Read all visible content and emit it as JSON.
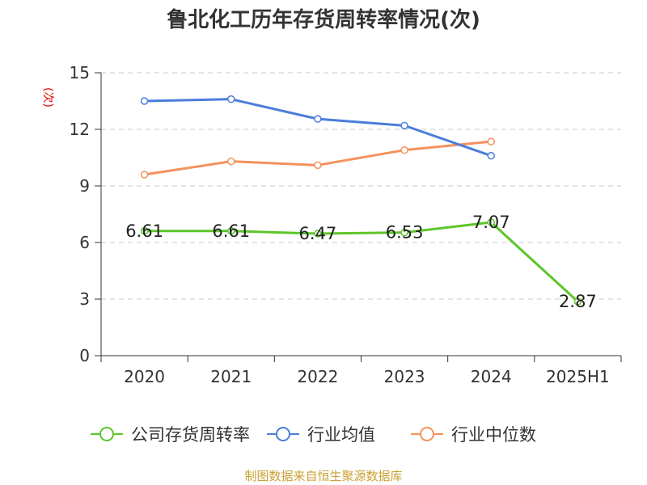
{
  "page": {
    "title": "鲁北化工历年存货周转率情况(次)",
    "footer": "制图数据来自恒生聚源数据库"
  },
  "chart_data": {
    "type": "line",
    "title": "鲁北化工历年存货周转率情况(次)",
    "ylabel": "(次)",
    "xlabel": "",
    "ylim": [
      0,
      15
    ],
    "yticks": [
      0,
      3,
      6,
      9,
      12,
      15
    ],
    "grid": true,
    "legend_position": "bottom",
    "categories": [
      "2020",
      "2021",
      "2022",
      "2023",
      "2024",
      "2025H1"
    ],
    "series": [
      {
        "name": "公司存货周转率",
        "color": "#5ec52a",
        "values": [
          6.61,
          6.61,
          6.47,
          6.53,
          7.07,
          2.87
        ],
        "labels": [
          "6.61",
          "6.61",
          "6.47",
          "6.53",
          "7.07",
          "2.87"
        ]
      },
      {
        "name": "行业均值",
        "color": "#4b7ddb",
        "values": [
          13.5,
          13.6,
          12.55,
          12.2,
          10.6,
          null
        ]
      },
      {
        "name": "行业中位数",
        "color": "#f5915d",
        "values": [
          9.6,
          10.3,
          10.1,
          10.9,
          11.35,
          null
        ]
      }
    ]
  }
}
